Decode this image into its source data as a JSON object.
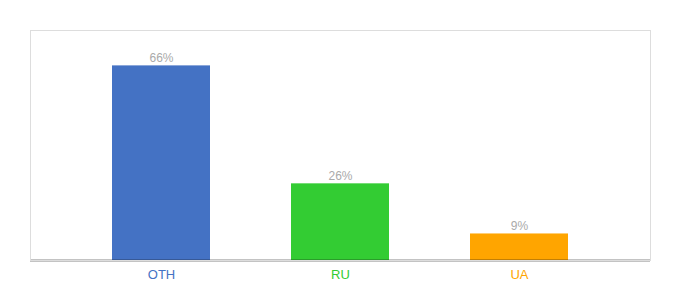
{
  "chart_data": {
    "type": "bar",
    "categories": [
      "OTH",
      "RU",
      "UA"
    ],
    "values": [
      66,
      26,
      9
    ],
    "value_labels": [
      "66%",
      "26%",
      "9%"
    ],
    "colors": [
      "#4472C4",
      "#33CC33",
      "#FFA500"
    ],
    "ylim": [
      0,
      78
    ],
    "data_labels": true,
    "tick_labels": "x",
    "grid": false
  }
}
